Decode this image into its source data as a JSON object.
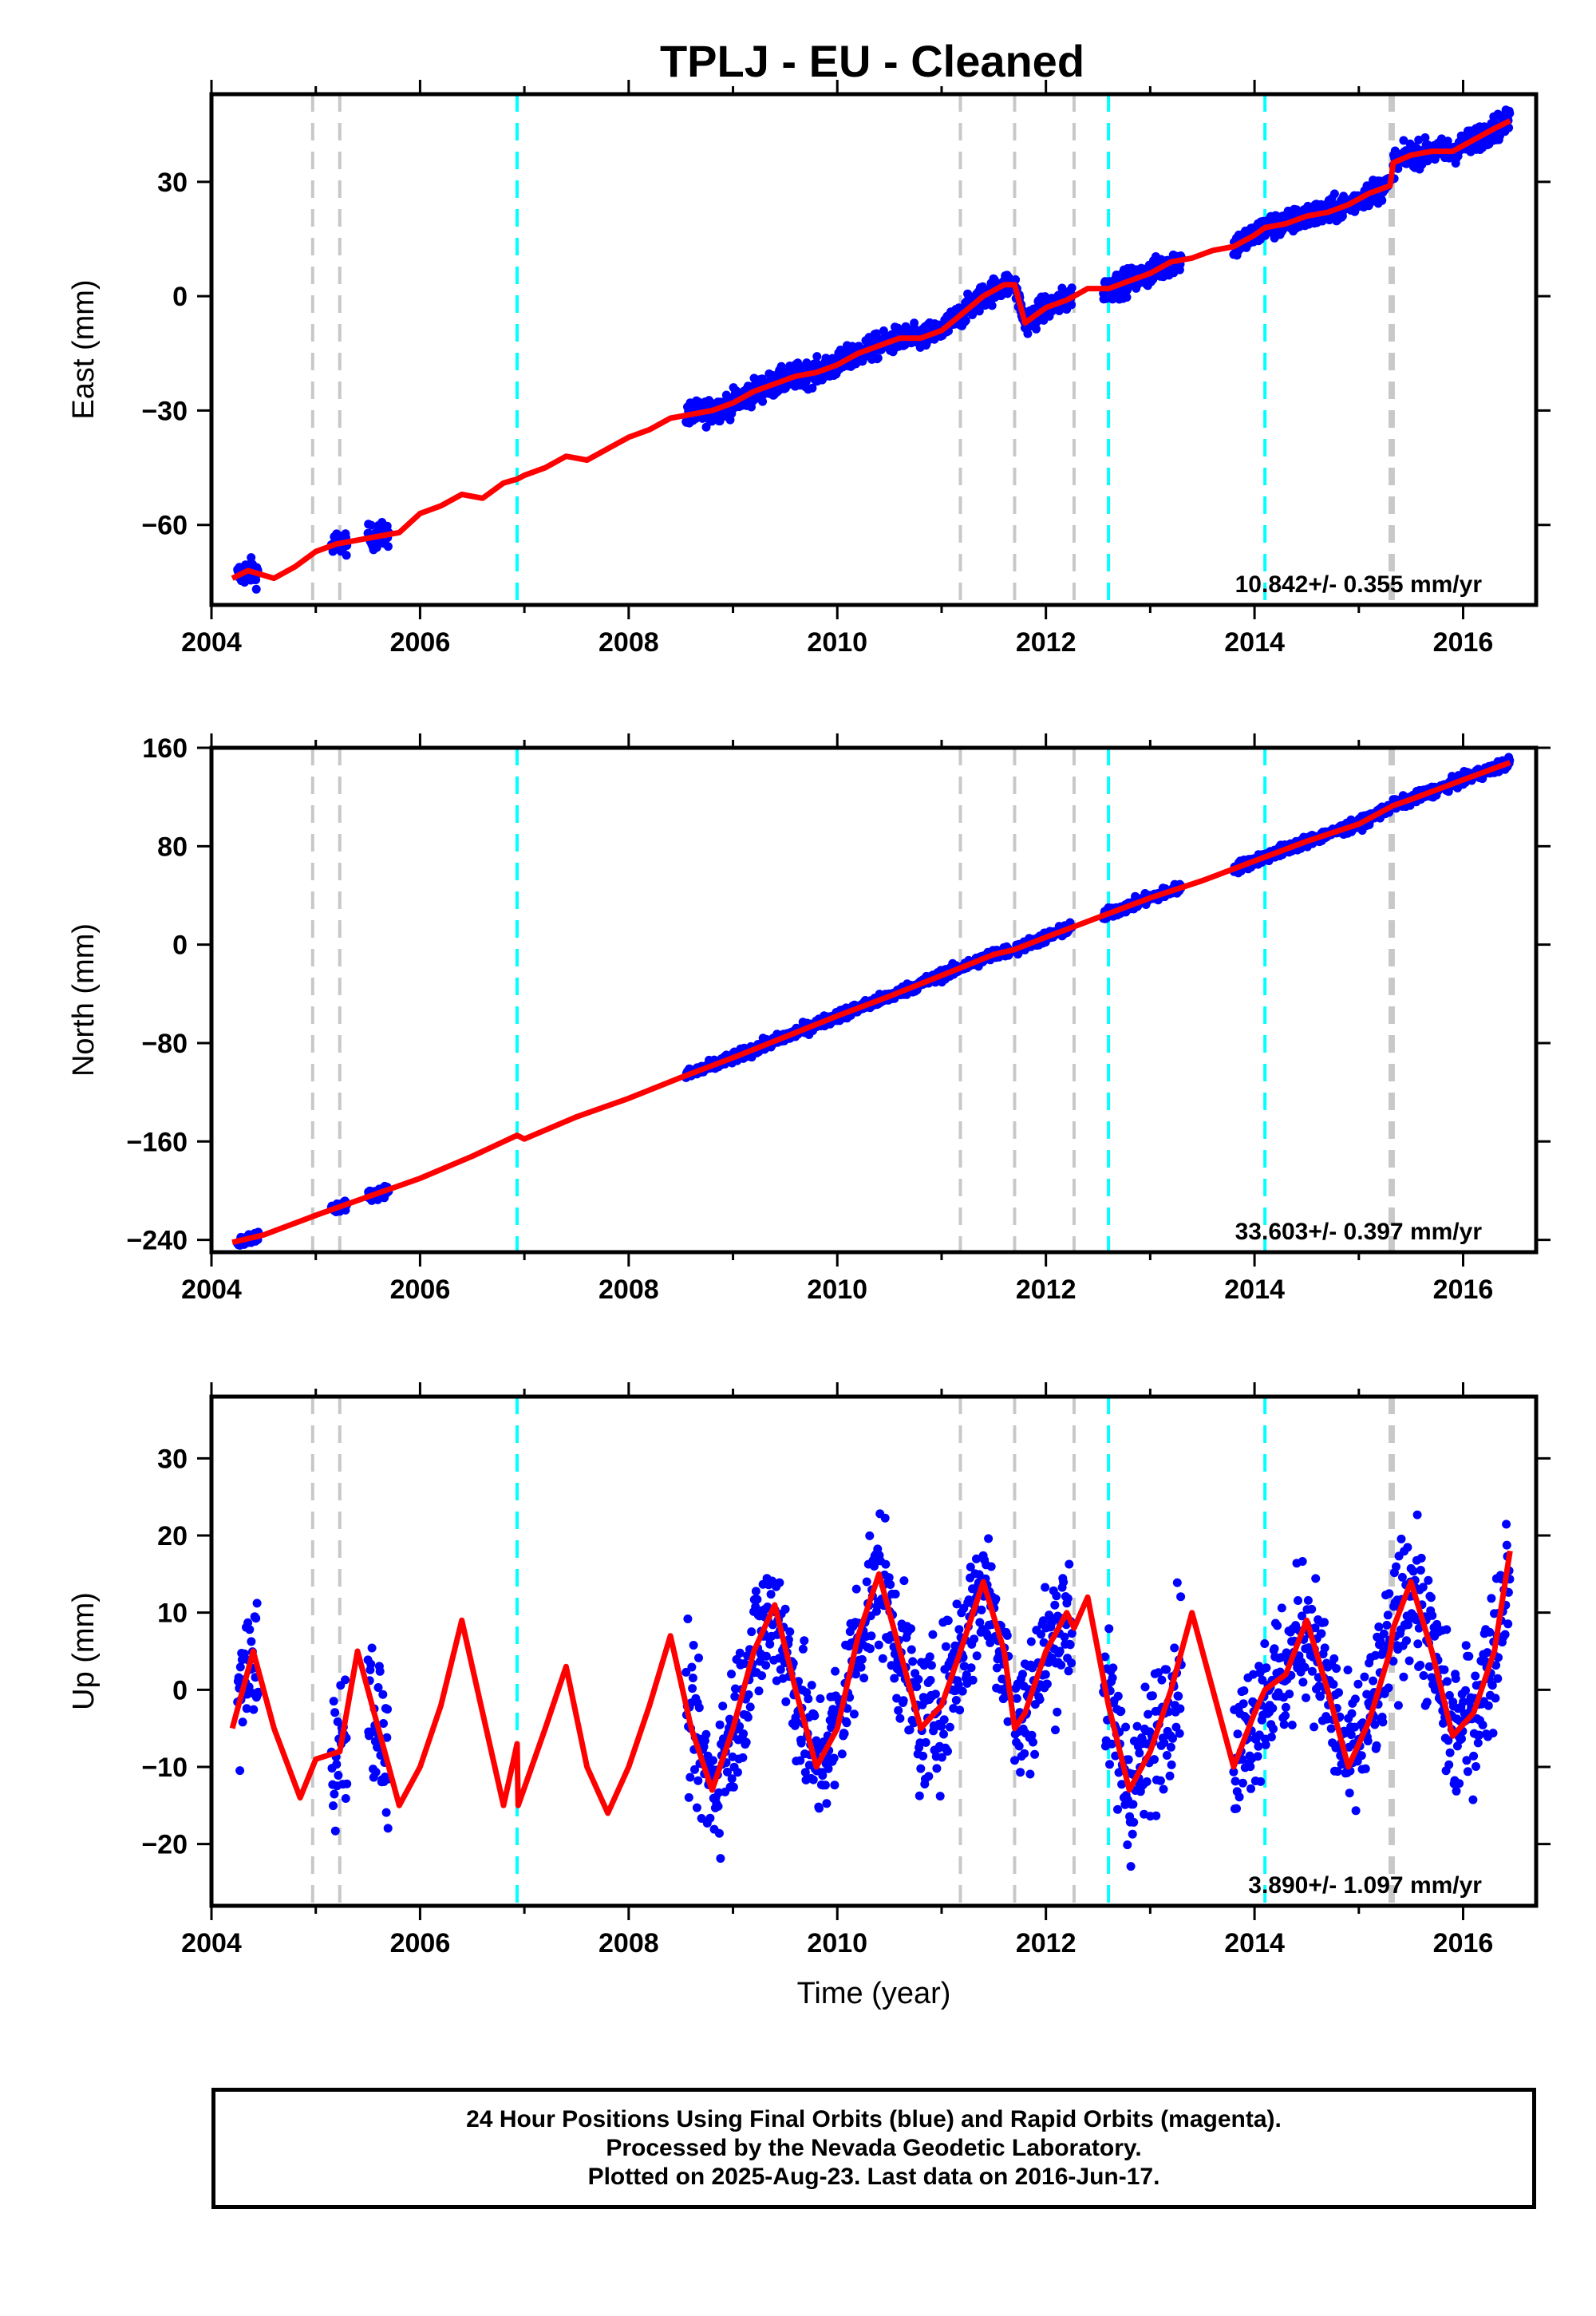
{
  "title": "TPLJ  - EU - Cleaned",
  "colors": {
    "observations": "#0000ff",
    "model": "#ff0000",
    "equipment_change": "#c8c8c8",
    "earthquake": "#00ffff"
  },
  "footer": {
    "line1": "24 Hour Positions Using Final Orbits (blue) and Rapid Orbits (magenta).",
    "line2": "Processed by the Nevada Geodetic Laboratory.",
    "line3": "Plotted on 2025-Aug-23. Last data on 2016-Jun-17."
  },
  "chart_data": [
    {
      "type": "scatter",
      "component": "East",
      "ylabel": "East (mm)",
      "xlabel": "",
      "xlim": [
        2004.0,
        2016.7
      ],
      "ylim": [
        -81,
        53
      ],
      "x_ticks": [
        2004,
        2006,
        2008,
        2010,
        2012,
        2014,
        2016
      ],
      "y_ticks": [
        -60,
        -30,
        0,
        30
      ],
      "rate_label": "10.842+/- 0.355 mm/yr",
      "gray_dashed_lines": [
        2004.97,
        2005.23,
        2011.18,
        2011.7,
        2012.27,
        2015.3,
        2015.33
      ],
      "cyan_dashed_lines": [
        2006.93,
        2012.6,
        2014.1
      ],
      "model_curve": {
        "x": [
          2004.2,
          2004.35,
          2004.6,
          2004.8,
          2005.0,
          2005.2,
          2005.4,
          2005.6,
          2005.8,
          2006.0,
          2006.2,
          2006.4,
          2006.6,
          2006.8,
          2006.93,
          2007.0,
          2007.2,
          2007.4,
          2007.6,
          2007.8,
          2008.0,
          2008.2,
          2008.4,
          2008.6,
          2008.8,
          2009.0,
          2009.2,
          2009.4,
          2009.6,
          2009.8,
          2010.0,
          2010.2,
          2010.4,
          2010.6,
          2010.8,
          2011.0,
          2011.18,
          2011.4,
          2011.6,
          2011.7,
          2011.8,
          2012.0,
          2012.2,
          2012.27,
          2012.4,
          2012.6,
          2012.8,
          2013.0,
          2013.2,
          2013.4,
          2013.6,
          2013.8,
          2014.0,
          2014.1,
          2014.3,
          2014.5,
          2014.7,
          2014.9,
          2015.1,
          2015.3,
          2015.33,
          2015.5,
          2015.7,
          2015.9,
          2016.1,
          2016.3,
          2016.45
        ],
        "y": [
          -74,
          -72,
          -74,
          -71,
          -67,
          -65,
          -64,
          -63,
          -62,
          -57,
          -55,
          -52,
          -53,
          -49,
          -48,
          -47,
          -45,
          -42,
          -43,
          -40,
          -37,
          -35,
          -32,
          -31,
          -30,
          -28,
          -25,
          -23,
          -21,
          -20,
          -18,
          -15,
          -13,
          -11,
          -11,
          -9,
          -5,
          0,
          3,
          3,
          -7,
          -3,
          -1,
          0,
          2,
          2,
          4,
          6,
          9,
          10,
          12,
          13,
          16,
          18,
          19,
          21,
          22,
          24,
          27,
          29,
          35,
          37,
          38,
          38,
          41,
          44,
          46
        ]
      },
      "observation_segments": [
        {
          "start": 2004.25,
          "end": 2004.45,
          "values": [
            -74,
            -72
          ]
        },
        {
          "start": 2005.15,
          "end": 2005.3,
          "values": [
            -64,
            -63
          ]
        },
        {
          "start": 2005.5,
          "end": 2005.7,
          "values": [
            -63,
            -63
          ]
        },
        {
          "start": 2008.55,
          "end": 2011.65,
          "values": [
            -31,
            3
          ]
        },
        {
          "start": 2011.7,
          "end": 2012.25,
          "values": [
            -7,
            -1
          ]
        },
        {
          "start": 2012.55,
          "end": 2013.3,
          "values": [
            1,
            10
          ]
        },
        {
          "start": 2013.8,
          "end": 2015.3,
          "values": [
            14,
            29
          ]
        },
        {
          "start": 2015.33,
          "end": 2016.45,
          "values": [
            35,
            46
          ]
        }
      ]
    },
    {
      "type": "scatter",
      "component": "North",
      "ylabel": "North (mm)",
      "xlabel": "",
      "xlim": [
        2004.0,
        2016.7
      ],
      "ylim": [
        -250,
        160
      ],
      "x_ticks": [
        2004,
        2006,
        2008,
        2010,
        2012,
        2014,
        2016
      ],
      "y_ticks": [
        -240,
        -160,
        -80,
        0,
        80,
        160
      ],
      "rate_label": "33.603+/- 0.397 mm/yr",
      "gray_dashed_lines": [
        2004.97,
        2005.23,
        2011.18,
        2011.7,
        2012.27,
        2015.3,
        2015.33
      ],
      "cyan_dashed_lines": [
        2006.93,
        2012.6,
        2014.1
      ],
      "model_curve": {
        "x": [
          2004.2,
          2004.5,
          2005.0,
          2005.5,
          2006.0,
          2006.5,
          2006.93,
          2007.0,
          2007.5,
          2008.0,
          2008.5,
          2009.0,
          2009.5,
          2010.0,
          2010.5,
          2011.0,
          2011.5,
          2011.7,
          2012.0,
          2012.5,
          2013.0,
          2013.5,
          2014.0,
          2014.5,
          2015.0,
          2015.33,
          2015.5,
          2016.0,
          2016.45
        ],
        "y": [
          -242,
          -236,
          -220,
          -205,
          -190,
          -172,
          -155,
          -158,
          -140,
          -125,
          -108,
          -92,
          -75,
          -58,
          -42,
          -25,
          -8,
          -4,
          6,
          22,
          38,
          52,
          68,
          84,
          98,
          113,
          118,
          134,
          148
        ]
      },
      "observation_segments": [
        {
          "start": 2004.25,
          "end": 2004.45,
          "values": [
            -243,
            -236
          ]
        },
        {
          "start": 2005.15,
          "end": 2005.3,
          "values": [
            -213,
            -208
          ]
        },
        {
          "start": 2005.5,
          "end": 2005.7,
          "values": [
            -203,
            -198
          ]
        },
        {
          "start": 2008.55,
          "end": 2011.65,
          "values": [
            -108,
            -5
          ]
        },
        {
          "start": 2011.7,
          "end": 2012.25,
          "values": [
            -4,
            12
          ]
        },
        {
          "start": 2012.55,
          "end": 2013.3,
          "values": [
            21,
            43
          ]
        },
        {
          "start": 2013.8,
          "end": 2015.3,
          "values": [
            58,
            110
          ]
        },
        {
          "start": 2015.33,
          "end": 2016.45,
          "values": [
            113,
            148
          ]
        }
      ]
    },
    {
      "type": "scatter",
      "component": "Up",
      "ylabel": "Up (mm)",
      "xlabel": "Time (year)",
      "xlim": [
        2004.0,
        2016.7
      ],
      "ylim": [
        -28,
        38
      ],
      "x_ticks": [
        2004,
        2006,
        2008,
        2010,
        2012,
        2014,
        2016
      ],
      "y_ticks": [
        -20,
        -10,
        0,
        10,
        20,
        30
      ],
      "rate_label": "3.890+/- 1.097 mm/yr",
      "gray_dashed_lines": [
        2004.97,
        2005.23,
        2011.18,
        2011.7,
        2012.27,
        2015.3,
        2015.33
      ],
      "cyan_dashed_lines": [
        2006.93,
        2012.6,
        2014.1
      ],
      "model_curve": {
        "x": [
          2004.2,
          2004.4,
          2004.6,
          2004.85,
          2004.97,
          2005.0,
          2005.23,
          2005.4,
          2005.6,
          2005.8,
          2006.0,
          2006.2,
          2006.4,
          2006.6,
          2006.8,
          2006.93,
          2006.94,
          2007.2,
          2007.4,
          2007.6,
          2007.8,
          2008.0,
          2008.2,
          2008.4,
          2008.6,
          2008.8,
          2009.0,
          2009.2,
          2009.4,
          2009.6,
          2009.8,
          2010.0,
          2010.2,
          2010.4,
          2010.6,
          2010.8,
          2011.0,
          2011.18,
          2011.4,
          2011.6,
          2011.7,
          2011.8,
          2012.0,
          2012.2,
          2012.27,
          2012.4,
          2012.6,
          2012.8,
          2013.0,
          2013.2,
          2013.4,
          2013.6,
          2013.8,
          2014.0,
          2014.1,
          2014.3,
          2014.5,
          2014.7,
          2014.9,
          2015.1,
          2015.3,
          2015.33,
          2015.5,
          2015.7,
          2015.9,
          2016.1,
          2016.3,
          2016.45
        ],
        "y": [
          -5,
          5,
          -5,
          -14,
          -10,
          -9,
          -8,
          5,
          -5,
          -15,
          -10,
          -2,
          9,
          -3,
          -15,
          -7,
          -15,
          -5,
          3,
          -10,
          -16,
          -10,
          -2,
          7,
          -5,
          -13,
          -5,
          5,
          11,
          0,
          -10,
          -5,
          7,
          15,
          5,
          -5,
          -2,
          5,
          14,
          5,
          -5,
          -3,
          5,
          10,
          8,
          12,
          -2,
          -13,
          -8,
          0,
          10,
          0,
          -10,
          -3,
          0,
          2,
          9,
          0,
          -10,
          -4,
          5,
          8,
          14,
          5,
          -6,
          -3,
          5,
          18
        ]
      },
      "observation_segments": [
        {
          "start": 2004.25,
          "end": 2004.45,
          "values": [
            -3,
            6
          ]
        },
        {
          "start": 2005.15,
          "end": 2005.3,
          "values": [
            -6,
            4
          ]
        },
        {
          "start": 2005.5,
          "end": 2005.7,
          "values": [
            -5,
            -12
          ]
        },
        {
          "start": 2008.55,
          "end": 2011.65,
          "values": [
            -12,
            14
          ]
        },
        {
          "start": 2011.7,
          "end": 2012.25,
          "values": [
            -5,
            8
          ]
        },
        {
          "start": 2012.55,
          "end": 2013.3,
          "values": [
            -15,
            0
          ]
        },
        {
          "start": 2013.8,
          "end": 2015.3,
          "values": [
            -10,
            8
          ]
        },
        {
          "start": 2015.33,
          "end": 2016.45,
          "values": [
            10,
            18
          ]
        }
      ]
    }
  ]
}
